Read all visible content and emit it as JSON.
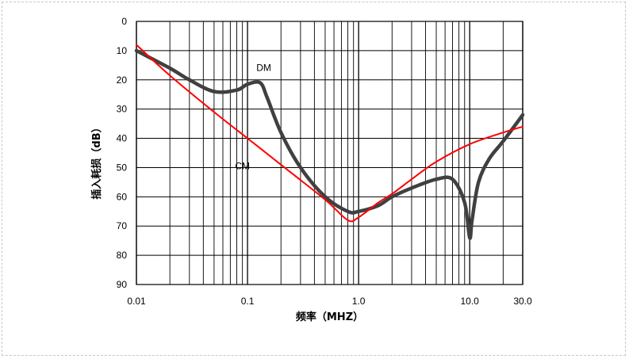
{
  "chart_data": {
    "type": "line",
    "title": "",
    "xlabel": "频率（MHZ）",
    "ylabel": "插入耗损（dB）",
    "x_scale": "log",
    "xlim": [
      0.01,
      30
    ],
    "ylim": [
      0,
      90
    ],
    "y_inverted": true,
    "grid": true,
    "x_ticks": [
      {
        "value": 0.01,
        "label": "0.01"
      },
      {
        "value": 0.1,
        "label": "0.1"
      },
      {
        "value": 1,
        "label": "1.0"
      },
      {
        "value": 10,
        "label": "10.0"
      },
      {
        "value": 30,
        "label": "30.0"
      }
    ],
    "y_ticks": [
      0,
      10,
      20,
      30,
      40,
      50,
      60,
      70,
      80,
      90
    ],
    "series": [
      {
        "name": "DM",
        "color": "#404040",
        "x": [
          0.01,
          0.02,
          0.03,
          0.05,
          0.08,
          0.1,
          0.13,
          0.15,
          0.2,
          0.3,
          0.5,
          0.8,
          1.0,
          1.5,
          2.0,
          3.0,
          5.0,
          7.0,
          9.0,
          10.0,
          10.5,
          12.0,
          15.0,
          20.0,
          30.0
        ],
        "y": [
          10,
          16,
          20,
          24,
          23.5,
          21.5,
          21,
          26,
          38,
          50,
          60,
          65,
          65,
          63,
          60,
          57,
          54,
          54,
          62,
          74,
          68,
          55,
          47,
          41,
          32
        ]
      },
      {
        "name": "CM",
        "color": "#ff0000",
        "x": [
          0.01,
          0.02,
          0.05,
          0.1,
          0.2,
          0.5,
          0.8,
          1.0,
          1.5,
          2.0,
          3.0,
          5.0,
          10.0,
          20.0,
          30.0
        ],
        "y": [
          8,
          18.5,
          31,
          40,
          49,
          61,
          68,
          67,
          62,
          59,
          54,
          48,
          42,
          38,
          36
        ]
      }
    ],
    "annotations": [
      {
        "text": "DM",
        "x": 0.14,
        "y": 17
      },
      {
        "text": "CM",
        "x": 0.09,
        "y": 50.5
      }
    ]
  }
}
